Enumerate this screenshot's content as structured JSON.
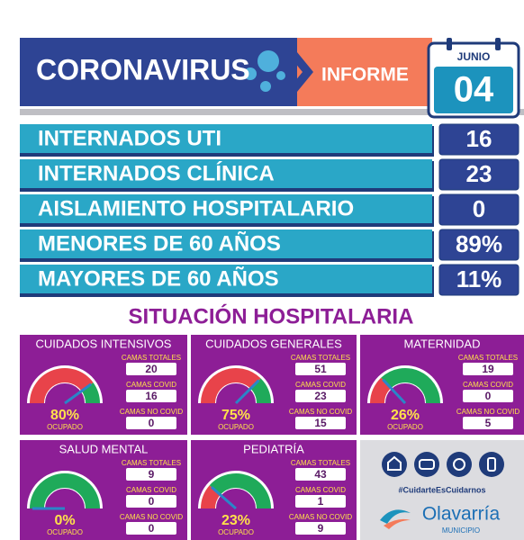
{
  "header": {
    "title": "CORONAVIRUS",
    "subtitle": "INFORME",
    "month": "JUNIO",
    "day": "04"
  },
  "stats": [
    {
      "label": "INTERNADOS UTI",
      "value": 16
    },
    {
      "label": "INTERNADOS CLÍNICA",
      "value": 23
    },
    {
      "label": "AISLAMIENTO HOSPITALARIO",
      "value": 0
    },
    {
      "label": "MENORES DE 60 AÑOS",
      "value": "89%"
    },
    {
      "label": "MAYORES DE 60 AÑOS",
      "value": "11%"
    }
  ],
  "section_title": "SITUACIÓN HOSPITALARIA",
  "panels": [
    {
      "name": "CUIDADOS INTENSIVOS",
      "occupancy": {
        "value": 80,
        "label": "80%"
      },
      "occupied_label": "OCUPADO",
      "beds": [
        {
          "label": "CAMAS TOTALES",
          "value": 20
        },
        {
          "label": "CAMAS COVID",
          "value": 16
        },
        {
          "label": "CAMAS NO COVID",
          "value": 0
        }
      ]
    },
    {
      "name": "CUIDADOS GENERALES",
      "occupancy": {
        "value": 75,
        "label": "75%"
      },
      "occupied_label": "OCUPADO",
      "beds": [
        {
          "label": "CAMAS TOTALES",
          "value": 51
        },
        {
          "label": "CAMAS COVID",
          "value": 23
        },
        {
          "label": "CAMAS NO COVID",
          "value": 15
        }
      ]
    },
    {
      "name": "MATERNIDAD",
      "occupancy": {
        "value": 26,
        "label": "26%"
      },
      "occupied_label": "OCUPADO",
      "beds": [
        {
          "label": "CAMAS TOTALES",
          "value": 19
        },
        {
          "label": "CAMAS COVID",
          "value": 0
        },
        {
          "label": "CAMAS NO COVID",
          "value": 5
        }
      ]
    },
    {
      "name": "SALUD MENTAL",
      "occupancy": {
        "value": 0,
        "label": "0%"
      },
      "occupied_label": "OCUPADO",
      "beds": [
        {
          "label": "CAMAS TOTALES",
          "value": 9
        },
        {
          "label": "CAMAS COVID",
          "value": 0
        },
        {
          "label": "CAMAS NO COVID",
          "value": 0
        }
      ]
    },
    {
      "name": "PEDIATRÍA",
      "occupancy": {
        "value": 23,
        "label": "23%"
      },
      "occupied_label": "OCUPADO",
      "beds": [
        {
          "label": "CAMAS TOTALES",
          "value": 43
        },
        {
          "label": "CAMAS COVID",
          "value": 1
        },
        {
          "label": "CAMAS NO COVID",
          "value": 9
        }
      ]
    }
  ],
  "footer": {
    "hashtag": "#CuidarteEsCuidarnos",
    "brand": "Olavarría",
    "subbrand": "MUNICIPIO"
  }
}
